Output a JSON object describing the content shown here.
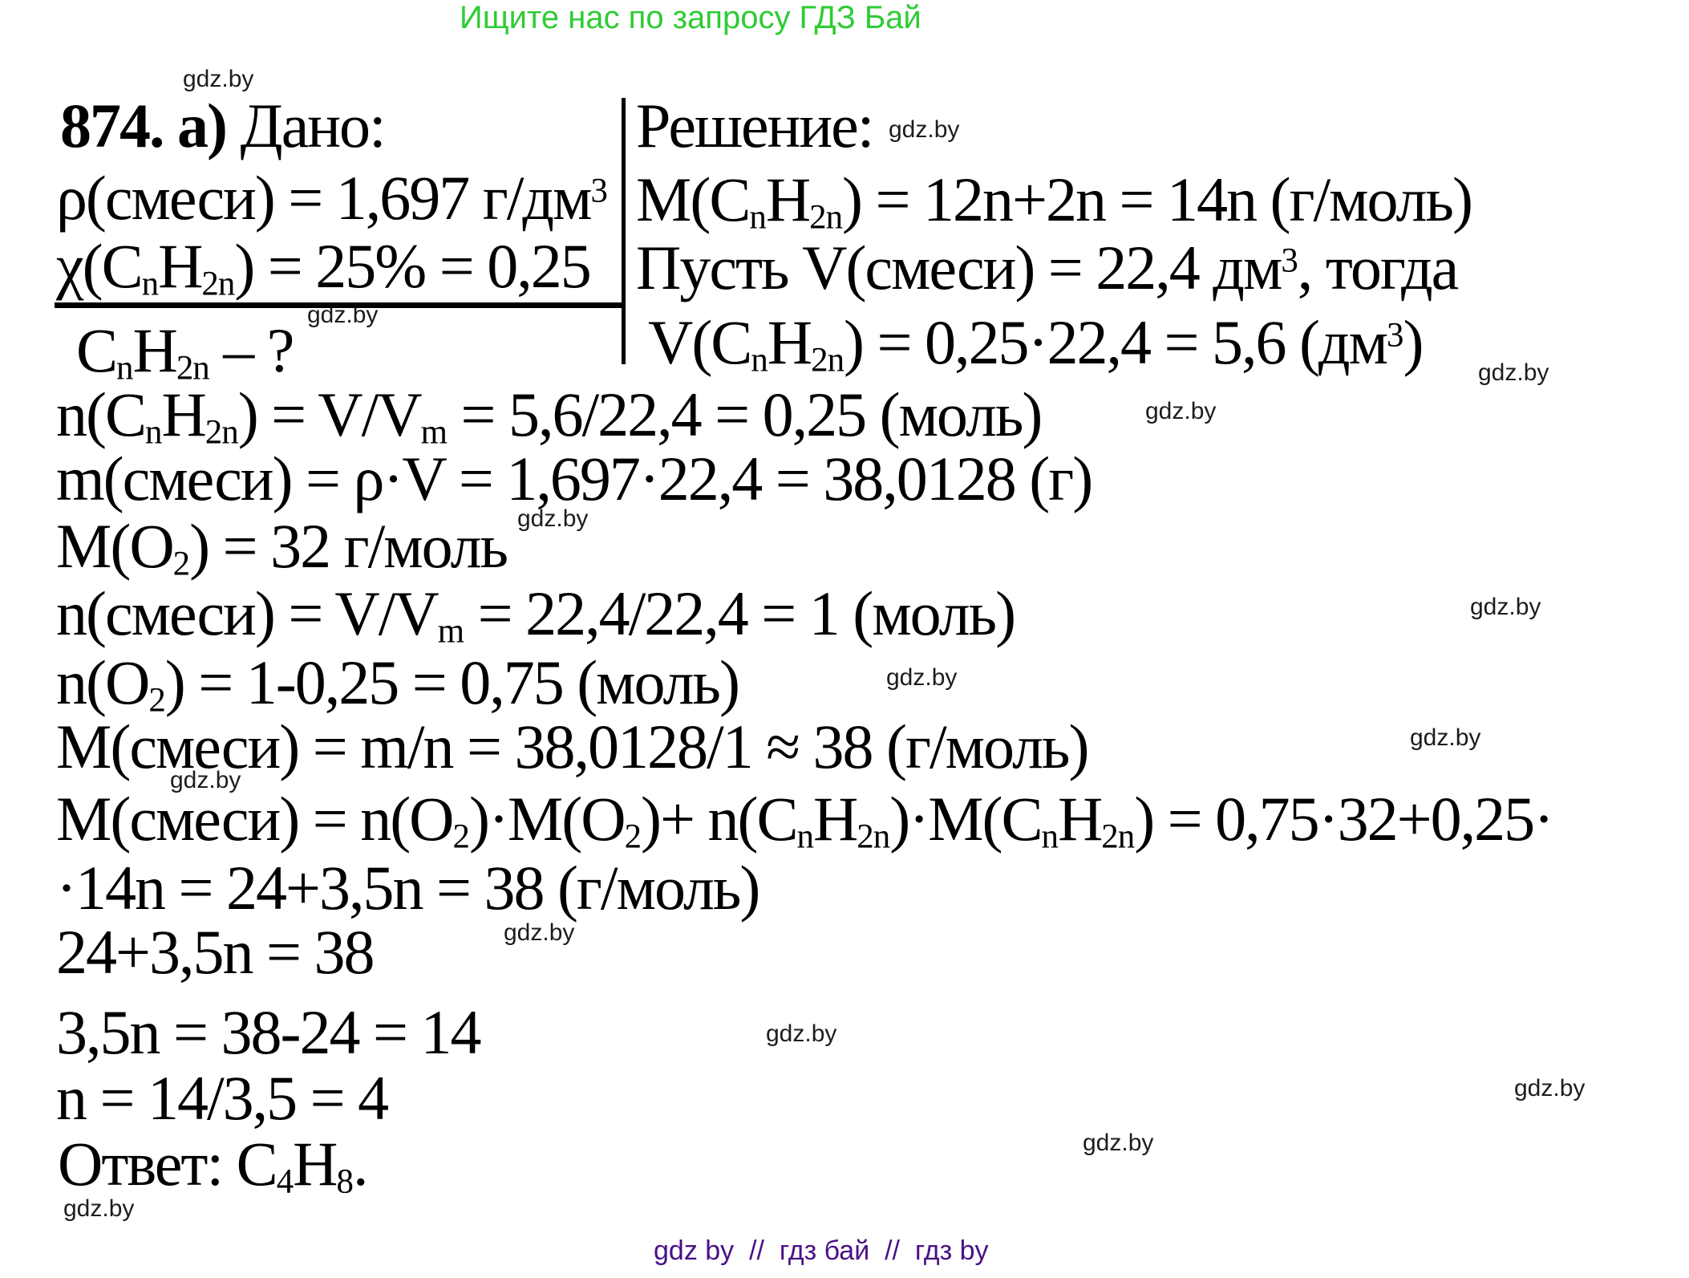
{
  "colors": {
    "promo_green": "#2ecc33",
    "footer_purple": "#4a1187",
    "text_black": "#000000"
  },
  "header": {
    "promo": "Ищите нас по запросу ГДЗ Бай"
  },
  "watermark": {
    "label": "gdz.by"
  },
  "problem": {
    "number": "874. a) "
  },
  "given": {
    "title": "Дано:",
    "lines": [
      "ρ(смеси) = 1,697 г/дм<sup>3</sup>",
      "χ(C<sub>n</sub>H<sub>2n</sub>) = 25% = 0,25",
      "C<sub>n</sub>H<sub>2n</sub> – ?"
    ]
  },
  "solution": {
    "title": "Решение:",
    "setup_lines": [
      "M(C<sub>n</sub>H<sub>2n</sub>) = 12n+2n = 14n (г/моль)",
      "Пусть V(смеси) = 22,4 дм<sup>3</sup>, тогда",
      "V(C<sub>n</sub>H<sub>2n</sub>) = 0,25·22,4 = 5,6 (дм<sup>3</sup>)"
    ],
    "steps": [
      "n(C<sub>n</sub>H<sub>2n</sub>) = V/V<sub>m</sub> = 5,6/22,4 = 0,25 (моль)",
      "m(смеси) = ρ·V = 1,697·22,4 = 38,0128 (г)",
      "M(O<sub>2</sub>) = 32 г/моль",
      "n(смеси) = V/V<sub>m</sub> = 22,4/22,4 = 1 (моль)",
      "n(O<sub>2</sub>) = 1-0,25 = 0,75 (моль)",
      "M(смеси) = m/n = 38,0128/1 ≈ 38 (г/моль)",
      "M(смеси) = n(O<sub>2</sub>)·M(O<sub>2</sub>)+ n(C<sub>n</sub>H<sub>2n</sub>)·M(C<sub>n</sub>H<sub>2n</sub>) = 0,75·32+0,25·",
      "·14n = 24+3,5n = 38 (г/моль)",
      "24+3,5n = 38",
      "3,5n = 38-24 = 14",
      "n = 14/3,5 = 4"
    ],
    "answer": "Ответ: C<sub>4</sub>H<sub>8</sub>."
  },
  "footer": {
    "text": "gdz by  //  гдз бай  //  гдз by"
  }
}
